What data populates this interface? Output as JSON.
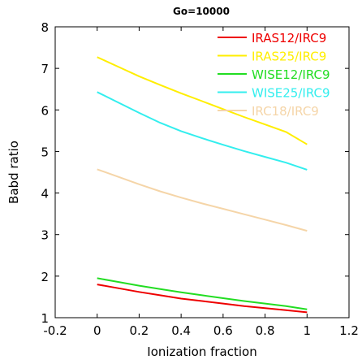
{
  "chart_data": {
    "type": "line",
    "title": "Go=10000",
    "xlabel": "Ionization fraction",
    "ylabel": "Babd ratio",
    "xlim": [
      -0.2,
      1.2
    ],
    "ylim": [
      1,
      8
    ],
    "xticks": [
      "-0.2",
      "0",
      "0.2",
      "0.4",
      "0.6",
      "0.8",
      "1",
      "1.2"
    ],
    "yticks": [
      "1",
      "2",
      "3",
      "4",
      "5",
      "6",
      "7",
      "8"
    ],
    "grid": false,
    "legend_position": "top-right",
    "x": [
      0,
      0.1,
      0.2,
      0.3,
      0.4,
      0.5,
      0.6,
      0.7,
      0.8,
      0.9,
      1.0
    ],
    "series": [
      {
        "name": "IRAS12/IRC9",
        "color": "#ee0000",
        "values": [
          1.8,
          1.71,
          1.62,
          1.54,
          1.46,
          1.4,
          1.34,
          1.28,
          1.23,
          1.18,
          1.13
        ]
      },
      {
        "name": "IRAS25/IRC9",
        "color": "#ffee00",
        "values": [
          7.27,
          7.04,
          6.81,
          6.6,
          6.4,
          6.21,
          6.02,
          5.83,
          5.65,
          5.47,
          5.17
        ]
      },
      {
        "name": "WISE12/IRC9",
        "color": "#22dd22",
        "values": [
          1.95,
          1.86,
          1.77,
          1.69,
          1.61,
          1.54,
          1.47,
          1.4,
          1.34,
          1.28,
          1.2
        ]
      },
      {
        "name": "WISE25/IRC9",
        "color": "#33eeee",
        "values": [
          6.43,
          6.18,
          5.93,
          5.69,
          5.49,
          5.32,
          5.16,
          5.01,
          4.87,
          4.73,
          4.56
        ]
      },
      {
        "name": "IRC18/IRC9",
        "color": "#f5d5a8",
        "values": [
          4.57,
          4.39,
          4.21,
          4.04,
          3.89,
          3.75,
          3.62,
          3.49,
          3.36,
          3.23,
          3.09
        ]
      }
    ]
  }
}
